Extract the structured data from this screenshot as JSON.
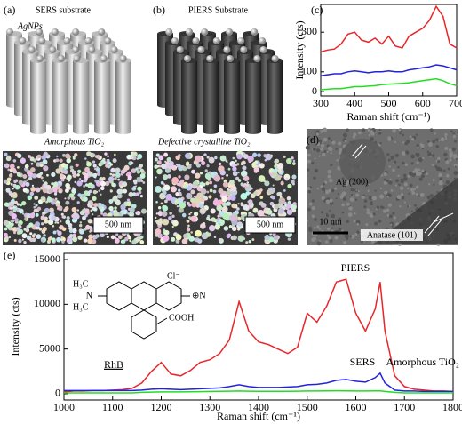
{
  "panels": {
    "a": {
      "label": "(a)",
      "title": "SERS substrate",
      "particles": "AgNPs",
      "film": "Amorphous TiO₂",
      "scale": "500 nm"
    },
    "b": {
      "label": "(b)",
      "title": "PIERS Substrate",
      "film": "Defective crystalline TiO₂",
      "scale": "500 nm"
    },
    "d": {
      "label": "(d)",
      "ag": "Ag (200)",
      "scale": "10 nm",
      "anatase": "Anatase (101)"
    }
  },
  "chart_data": [
    {
      "type": "line",
      "label": "(c)",
      "xlabel": "Raman shift (cm⁻¹)",
      "ylabel": "Intensity (cts)",
      "x": [
        300,
        320,
        340,
        360,
        380,
        400,
        420,
        440,
        460,
        480,
        500,
        520,
        540,
        560,
        580,
        600,
        620,
        640,
        660,
        680,
        700
      ],
      "xlim": [
        300,
        700
      ],
      "xticks": [
        300,
        400,
        500,
        600,
        700
      ],
      "ylim": [
        -22,
        440
      ],
      "yticks": [
        0,
        100,
        300
      ],
      "series": [
        {
          "color": "#e8262a",
          "values": [
            200,
            210,
            215,
            240,
            290,
            300,
            260,
            250,
            270,
            240,
            280,
            230,
            220,
            280,
            300,
            320,
            360,
            430,
            380,
            240,
            220
          ]
        },
        {
          "color": "#2222dd",
          "values": [
            80,
            85,
            90,
            90,
            100,
            105,
            100,
            95,
            100,
            100,
            105,
            100,
            100,
            110,
            115,
            120,
            125,
            135,
            130,
            120,
            110
          ]
        },
        {
          "color": "#22dd22",
          "values": [
            10,
            12,
            15,
            15,
            20,
            25,
            25,
            28,
            30,
            35,
            38,
            40,
            42,
            45,
            50,
            55,
            60,
            65,
            55,
            40,
            30
          ]
        }
      ]
    },
    {
      "type": "line",
      "label": "(e)",
      "xlabel": "Raman shift (cm⁻¹)",
      "ylabel": "Intensity (cts)",
      "x": [
        1000,
        1020,
        1040,
        1060,
        1080,
        1100,
        1120,
        1140,
        1160,
        1180,
        1200,
        1220,
        1240,
        1260,
        1280,
        1300,
        1320,
        1340,
        1360,
        1380,
        1400,
        1420,
        1440,
        1460,
        1480,
        1500,
        1520,
        1540,
        1560,
        1580,
        1600,
        1620,
        1640,
        1650,
        1660,
        1680,
        1700,
        1720,
        1740,
        1760,
        1780,
        1800
      ],
      "xlim": [
        1000,
        1800
      ],
      "xticks": [
        1000,
        1100,
        1200,
        1300,
        1400,
        1500,
        1600,
        1700,
        1800
      ],
      "ylim": [
        -700,
        15700
      ],
      "yticks": [
        0,
        5000,
        10000,
        15000
      ],
      "series": [
        {
          "name": "PIERS",
          "color": "#e8262a",
          "values": [
            200,
            300,
            300,
            350,
            350,
            400,
            450,
            600,
            1200,
            2500,
            3500,
            2200,
            2000,
            2600,
            3500,
            3800,
            4500,
            6000,
            10300,
            7000,
            5800,
            5500,
            5000,
            4500,
            5200,
            9000,
            8000,
            9800,
            12500,
            12800,
            9000,
            7000,
            9500,
            12500,
            7000,
            2000,
            800,
            500,
            400,
            300,
            300,
            250
          ]
        },
        {
          "name": "SERS",
          "color": "#2222dd",
          "values": [
            350,
            350,
            350,
            350,
            350,
            350,
            350,
            350,
            400,
            500,
            550,
            500,
            450,
            500,
            550,
            600,
            650,
            800,
            1000,
            800,
            700,
            700,
            700,
            750,
            800,
            1000,
            1050,
            1200,
            1500,
            1600,
            1400,
            1300,
            1800,
            2300,
            1200,
            400,
            300,
            300,
            250,
            250,
            250,
            250
          ]
        },
        {
          "name": "Amorphous TiO₂",
          "color": "#22dd22",
          "values": [
            100,
            100,
            100,
            100,
            100,
            100,
            100,
            100,
            150,
            180,
            200,
            200,
            200,
            220,
            230,
            250,
            260,
            280,
            300,
            280,
            260,
            260,
            260,
            270,
            280,
            300,
            300,
            320,
            330,
            320,
            300,
            300,
            310,
            320,
            250,
            150,
            100,
            100,
            100,
            100,
            100,
            100
          ]
        }
      ],
      "annotations": [
        {
          "text": "RhB",
          "color": "#8b2a1a"
        }
      ],
      "molecule": [
        "N",
        "H₃C",
        "H₃C",
        "Cl⁻",
        "⊕N",
        "COOH"
      ]
    }
  ]
}
